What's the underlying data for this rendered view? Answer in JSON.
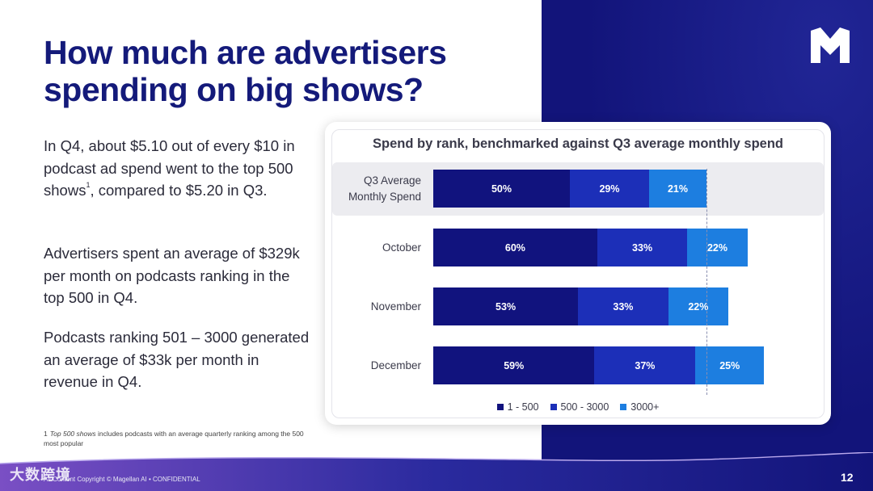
{
  "slide": {
    "title_line1": "How much are advertisers",
    "title_line2": "spending on big shows?",
    "paragraph1_before_sup": "In Q4, about $5.10 out of every $10 in podcast ad spend went to the top 500 shows",
    "paragraph1_sup": "1",
    "paragraph1_after_sup": ", compared to $5.20 in Q3.",
    "paragraph2": "Advertisers spent an average of $329k per month on podcasts ranking in the top 500 in Q4.",
    "paragraph3": "Podcasts ranking 501 – 3000 generated an average of $33k per month in revenue in Q4.",
    "footnote_number": "1",
    "footnote_italic": "Top 500 shows",
    "footnote_rest": " includes podcasts with an average quarterly ranking among the 500 most popular",
    "watermark": "大数跨境",
    "copyright": "All Content Copyright © Magellan AI • CONFIDENTIAL",
    "page_number": "12",
    "colors": {
      "navy": "#12147a",
      "title": "#141a7a",
      "seg1": "#11137e",
      "seg2": "#1c2fb8",
      "seg3": "#1d7ee0",
      "band": "#ececf0"
    }
  },
  "chart_data": {
    "type": "bar",
    "orientation": "horizontal",
    "stacked": true,
    "title": "Spend by rank, benchmarked against Q3 average monthly spend",
    "categories": [
      "Q3 Average Monthly Spend",
      "October",
      "November",
      "December"
    ],
    "category_lines": [
      [
        "Q3 Average",
        "Monthly Spend"
      ],
      [
        "October"
      ],
      [
        "November"
      ],
      [
        "December"
      ]
    ],
    "series": [
      {
        "name": "1 - 500",
        "values": [
          50,
          60,
          53,
          59
        ],
        "labels": [
          "50%",
          "60%",
          "53%",
          "59%"
        ]
      },
      {
        "name": "500 - 3000",
        "values": [
          29,
          33,
          33,
          37
        ],
        "labels": [
          "29%",
          "33%",
          "33%",
          "37%"
        ]
      },
      {
        "name": "3000+",
        "values": [
          21,
          22,
          22,
          25
        ],
        "labels": [
          "21%",
          "22%",
          "22%",
          "25%"
        ]
      }
    ],
    "reference_total": 100,
    "legend_position": "bottom"
  }
}
